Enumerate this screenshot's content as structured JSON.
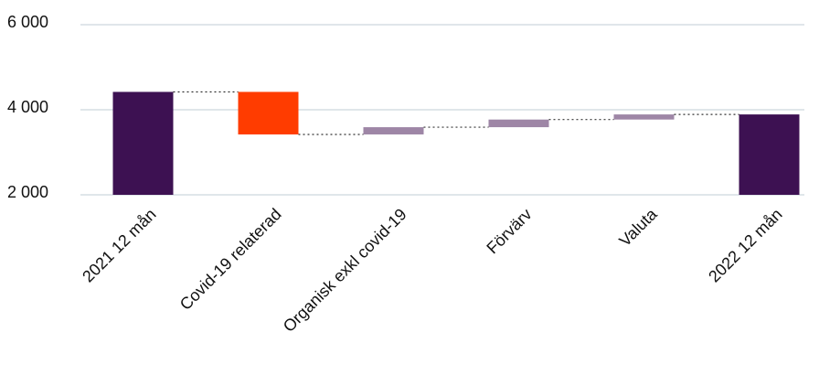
{
  "chart_data": {
    "type": "waterfall",
    "categories": [
      "2021 12 mån",
      "Covid-19 relaterad",
      "Organisk exkl covid-19",
      "Förvärv",
      "Valuta",
      "2022 12 mån"
    ],
    "values": [
      4420,
      -1000,
      170,
      180,
      120,
      3890
    ],
    "colors": [
      "#3d1152",
      "#ff3c00",
      "#9e86a6",
      "#9e86a6",
      "#9e86a6",
      "#3d1152"
    ],
    "ylim": [
      2000,
      6000
    ],
    "yticks": [
      {
        "value": 2000,
        "label": "2 000"
      },
      {
        "value": 4000,
        "label": "4 000"
      },
      {
        "value": 6000,
        "label": "6 000"
      }
    ],
    "grid": true
  }
}
